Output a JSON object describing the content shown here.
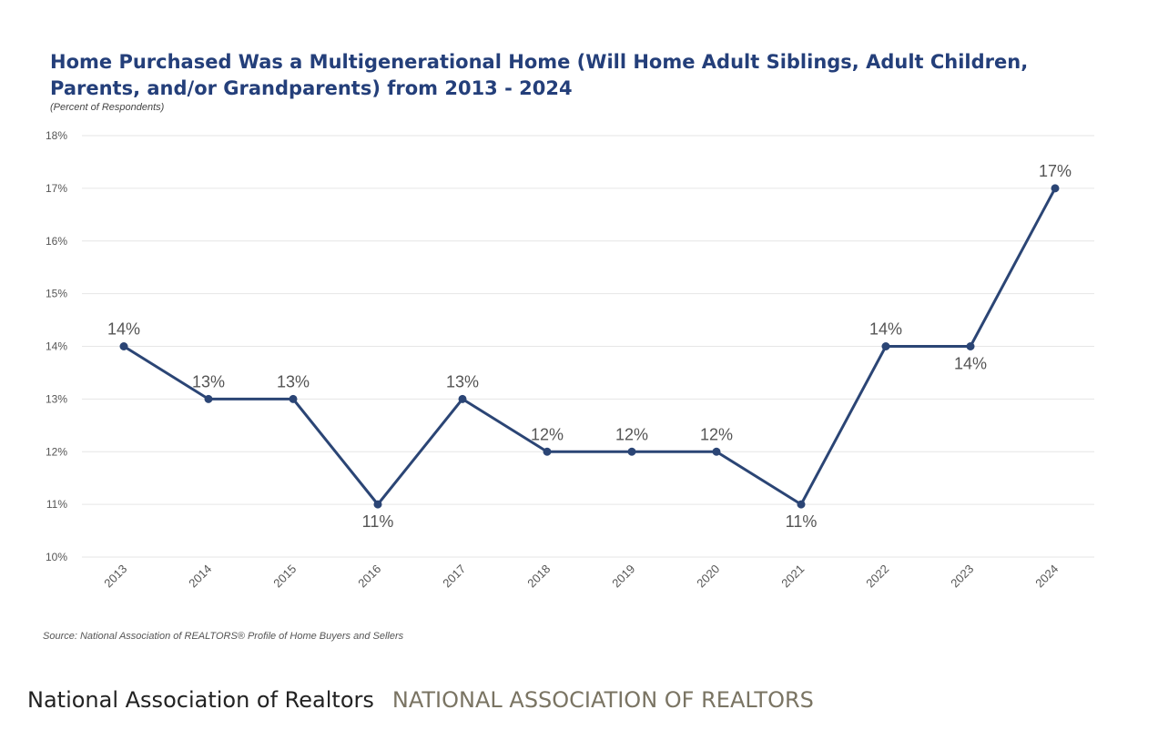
{
  "chart_data": {
    "type": "line",
    "title": "Home Purchased Was a Multigenerational Home (Will Home Adult Siblings, Adult Children, Parents, and/or Grandparents) from 2013 - 2024",
    "subtitle": "(Percent of Respondents)",
    "source": "Source: National Association of REALTORS® Profile of Home Buyers and Sellers",
    "categories": [
      "2013",
      "2014",
      "2015",
      "2016",
      "2017",
      "2018",
      "2019",
      "2020",
      "2021",
      "2022",
      "2023",
      "2024"
    ],
    "series": [
      {
        "values": [
          14,
          13,
          13,
          11,
          13,
          12,
          12,
          12,
          11,
          14,
          14,
          17
        ],
        "data_labels": [
          "14%",
          "13%",
          "13%",
          "11%",
          "13%",
          "12%",
          "12%",
          "12%",
          "11%",
          "14%",
          "14%",
          "17%"
        ],
        "color": "#2b4575"
      }
    ],
    "y_ticks": [
      "10%",
      "11%",
      "12%",
      "13%",
      "14%",
      "15%",
      "16%",
      "17%",
      "18%"
    ],
    "ylim": [
      10,
      18
    ],
    "grid": true,
    "legend": "none"
  },
  "caption": {
    "name": "National Association of Realtors",
    "org": "NATIONAL ASSOCIATION OF REALTORS"
  }
}
